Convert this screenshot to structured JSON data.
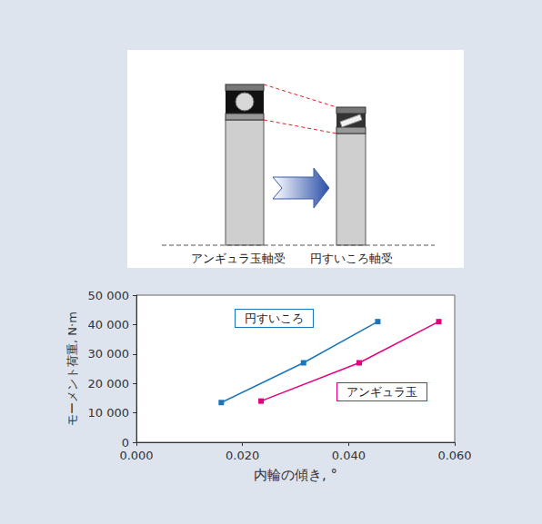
{
  "diagram": {
    "labels": [
      "アンギュラ玉軸受",
      "円すいころ軸受"
    ]
  },
  "chart_data": {
    "type": "line",
    "xlabel": "内輪の傾き, °",
    "ylabel": "モーメント荷重, N·m",
    "xlim": [
      0,
      0.06
    ],
    "xticks": [
      {
        "value": 0,
        "label": "0.000"
      },
      {
        "value": 0.02,
        "label": "0.020"
      },
      {
        "value": 0.04,
        "label": "0.040"
      },
      {
        "value": 0.06,
        "label": "0.060"
      }
    ],
    "ylim": [
      0,
      50000
    ],
    "yticks": [
      0,
      {
        "value": 10000,
        "label": "10 000"
      },
      {
        "value": 20000,
        "label": "20 000"
      },
      {
        "value": 30000,
        "label": "30 000"
      },
      {
        "value": 40000,
        "label": "40 000"
      },
      {
        "value": 50000,
        "label": "50 000"
      }
    ],
    "grid": false,
    "marker": "square",
    "series": [
      {
        "name": "円すいころ",
        "color": "#1b75bb",
        "x": [
          0.016,
          0.0315,
          0.0455
        ],
        "values": [
          13500,
          27000,
          41000
        ]
      },
      {
        "name": "アンギュラ玉",
        "color": "#e6007e",
        "x": [
          0.0235,
          0.042,
          0.057
        ],
        "values": [
          14000,
          27000,
          41000
        ]
      }
    ]
  }
}
